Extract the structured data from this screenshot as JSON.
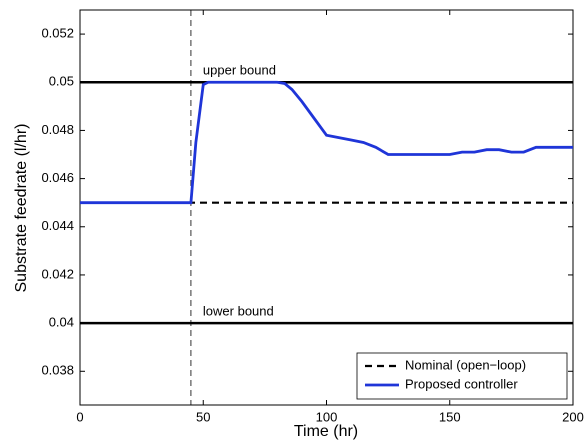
{
  "chart_data": {
    "type": "line",
    "xlabel": "Time (hr)",
    "ylabel": "Substrate feedrate (l/hr)",
    "xlim": [
      0,
      200
    ],
    "xticks": [
      0,
      50,
      100,
      150,
      200
    ],
    "ylim": [
      0.0366,
      0.053
    ],
    "yticks": [
      0.038,
      0.04,
      0.042,
      0.044,
      0.046,
      0.048,
      0.05,
      0.052
    ],
    "reference_lines": [
      {
        "label": "upper bound",
        "value": 0.05
      },
      {
        "label": "lower bound",
        "value": 0.04
      }
    ],
    "vline": 45,
    "legend": "lower right",
    "series": [
      {
        "name": "Nominal (open−loop)",
        "color": "#000000",
        "dashed": true,
        "x": [
          0,
          200
        ],
        "values": [
          0.045,
          0.045
        ]
      },
      {
        "name": "Proposed controller",
        "color": "#1f35d8",
        "dashed": false,
        "x": [
          0,
          45,
          47,
          50,
          52,
          80,
          83,
          86,
          90,
          95,
          100,
          105,
          110,
          115,
          120,
          125,
          130,
          135,
          140,
          145,
          150,
          155,
          160,
          165,
          170,
          175,
          180,
          185,
          190,
          195,
          200
        ],
        "values": [
          0.045,
          0.045,
          0.0475,
          0.0499,
          0.05,
          0.05,
          0.04995,
          0.0497,
          0.0492,
          0.0485,
          0.0478,
          0.0477,
          0.0476,
          0.0475,
          0.0473,
          0.047,
          0.047,
          0.047,
          0.047,
          0.047,
          0.047,
          0.0471,
          0.0471,
          0.0472,
          0.0472,
          0.0471,
          0.0471,
          0.0473,
          0.0473,
          0.0473,
          0.0473
        ]
      }
    ]
  }
}
